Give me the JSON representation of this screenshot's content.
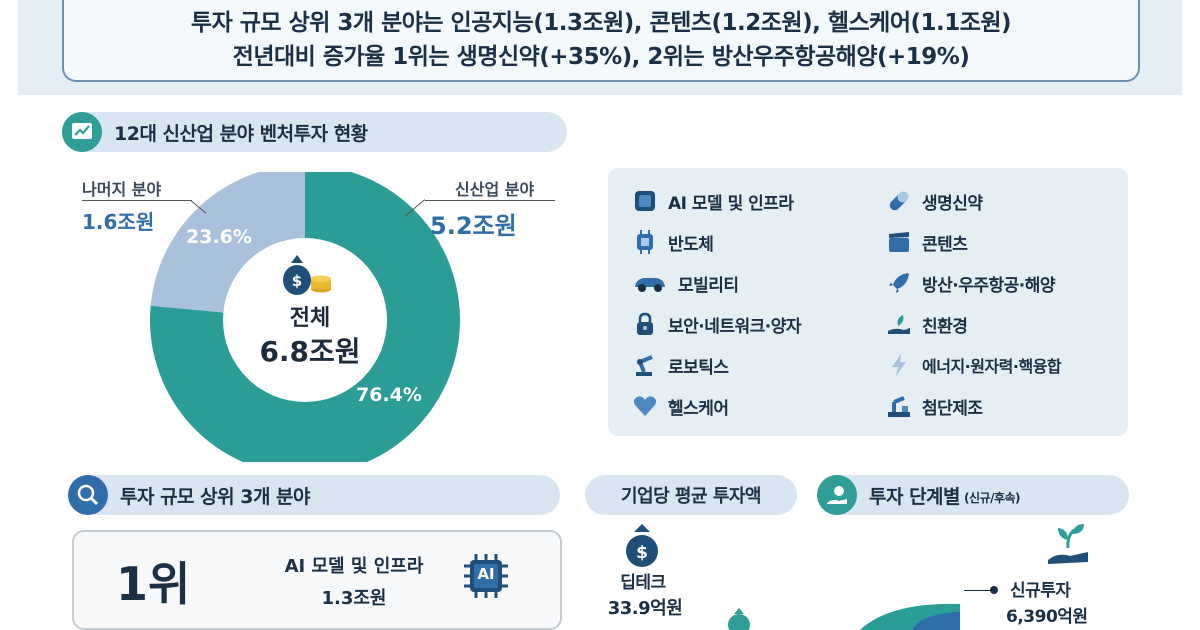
{
  "summary": {
    "line1": "투자 규모 상위 3개 분야는 인공지능(1.3조원), 콘텐츠(1.2조원), 헬스케어(1.1조원)",
    "line2": "전년대비 증가율 1위는 생명신약(+35%), 2위는 방산우주항공해양(+19%)"
  },
  "section1": {
    "title": "12대 신산업 분야 벤처투자 현황"
  },
  "donut": {
    "center_title": "전체",
    "center_value": "6.8조원",
    "new_industry": {
      "label": "신산업 분야",
      "value": "5.2조원",
      "pct_label": "76.4%"
    },
    "other": {
      "label": "나머지 분야",
      "value": "1.6조원",
      "pct_label": "23.6%"
    }
  },
  "legend": {
    "left": [
      "AI 모델 및 인프라",
      "반도체",
      "모빌리티",
      "보안·네트워크·양자",
      "로보틱스",
      "헬스케어"
    ],
    "right": [
      "생명신약",
      "콘텐츠",
      "방산·우주항공·해양",
      "친환경",
      "에너지·원자력·핵융합",
      "첨단제조"
    ]
  },
  "section2": {
    "title": "투자 규모 상위 3개 분야"
  },
  "rank": {
    "rank": "1위",
    "field": "AI 모델 및 인프라",
    "amount": "1.3조원",
    "chip_text": "AI"
  },
  "section3": {
    "title": "기업당 평균 투자액"
  },
  "avg": {
    "label": "딥테크",
    "value": "33.9억원"
  },
  "section4": {
    "title": "투자 단계별",
    "subtitle": "(신규/후속)"
  },
  "stage": {
    "label": "신규투자",
    "value": "6,390억원"
  },
  "colors": {
    "teal": "#2a9d96",
    "light_blue": "#a9c1dc",
    "navy": "#1b2f45",
    "accent_blue": "#2f6ea8"
  },
  "chart_data": {
    "type": "pie",
    "title": "12대 신산업 분야 벤처투자 현황",
    "total": "6.8조원",
    "categories": [
      "신산업 분야",
      "나머지 분야"
    ],
    "values": [
      5.2,
      1.6
    ],
    "percentages": [
      76.4,
      23.6
    ],
    "unit": "조원",
    "donut": true
  }
}
